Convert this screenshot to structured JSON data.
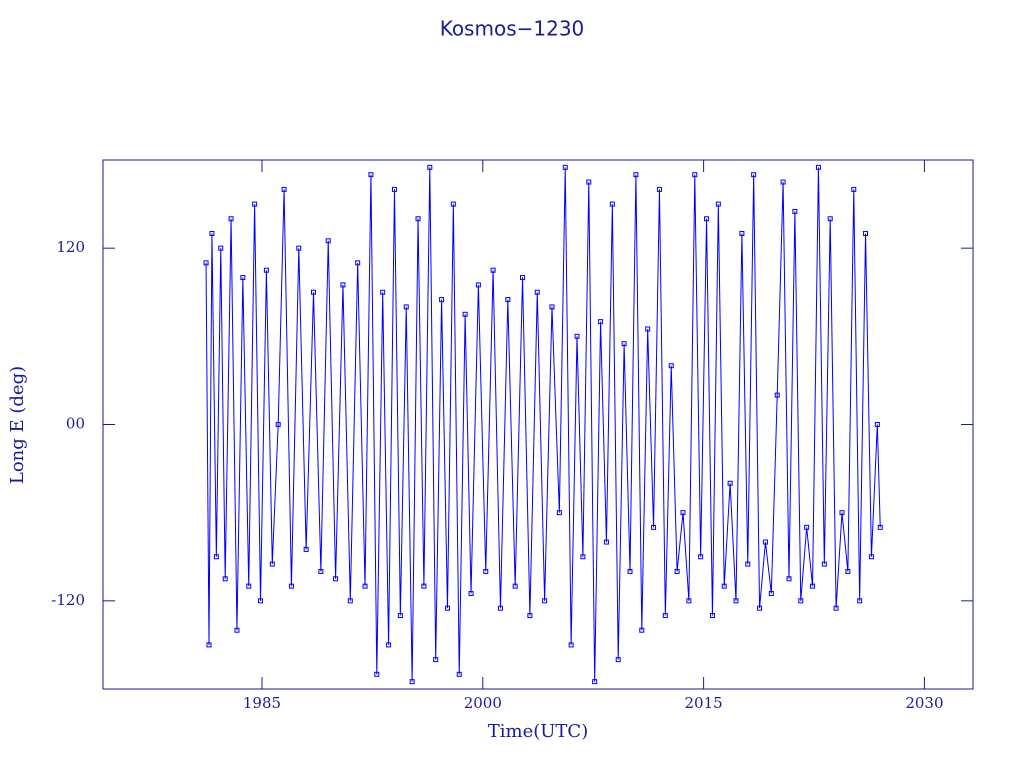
{
  "chart_data": {
    "type": "line",
    "title": "Kosmos−1230",
    "xlabel": "Time(UTC)",
    "ylabel": "Long E (deg)",
    "color": "#0000ff",
    "axis_color": "#1a1a9a",
    "xlim": [
      1974.2,
      2033.3
    ],
    "xticks": [
      1985,
      2000,
      2015,
      2030
    ],
    "ylim": [
      -180,
      180
    ],
    "yticks": [
      120,
      {
        "value": 0,
        "label": "00"
      },
      -120
    ],
    "x": [
      1981.2,
      1981.4,
      1981.6,
      1981.9,
      1982.2,
      1982.5,
      1982.9,
      1983.3,
      1983.7,
      1984.1,
      1984.5,
      1984.9,
      1985.3,
      1985.7,
      1986.1,
      1986.5,
      1987.0,
      1987.5,
      1988.0,
      1988.5,
      1989.0,
      1989.5,
      1990.0,
      1990.5,
      1991.0,
      1991.5,
      1992.0,
      1992.4,
      1992.8,
      1993.2,
      1993.6,
      1994.0,
      1994.4,
      1994.8,
      1995.2,
      1995.6,
      1996.0,
      1996.4,
      1996.8,
      1997.2,
      1997.6,
      1998.0,
      1998.4,
      1998.8,
      1999.2,
      1999.7,
      2000.2,
      2000.7,
      2001.2,
      2001.7,
      2002.2,
      2002.7,
      2003.2,
      2003.7,
      2004.2,
      2004.7,
      2005.2,
      2005.6,
      2006.0,
      2006.4,
      2006.8,
      2007.2,
      2007.6,
      2008.0,
      2008.4,
      2008.8,
      2009.2,
      2009.6,
      2010.0,
      2010.4,
      2010.8,
      2011.2,
      2011.6,
      2012.0,
      2012.4,
      2012.8,
      2013.2,
      2013.6,
      2014.0,
      2014.4,
      2014.8,
      2015.2,
      2015.6,
      2016.0,
      2016.4,
      2016.8,
      2017.2,
      2017.6,
      2018.0,
      2018.4,
      2018.8,
      2019.2,
      2019.6,
      2020.0,
      2020.4,
      2020.8,
      2021.2,
      2021.6,
      2022.0,
      2022.4,
      2022.8,
      2023.2,
      2023.6,
      2024.0,
      2024.4,
      2024.8,
      2025.2,
      2025.6,
      2026.0,
      2026.4,
      2026.8,
      2027.0
    ],
    "values": [
      110,
      -150,
      130,
      -90,
      120,
      -105,
      140,
      -140,
      100,
      -110,
      150,
      -120,
      105,
      -95,
      0,
      160,
      -110,
      120,
      -85,
      90,
      -100,
      125,
      -105,
      95,
      -120,
      110,
      -110,
      170,
      -170,
      90,
      -150,
      160,
      -130,
      80,
      -175,
      140,
      -110,
      175,
      -160,
      85,
      -125,
      150,
      -170,
      75,
      -115,
      95,
      -100,
      105,
      -125,
      85,
      -110,
      100,
      -130,
      90,
      -120,
      80,
      -60,
      175,
      -150,
      60,
      -90,
      165,
      -175,
      70,
      -80,
      150,
      -160,
      55,
      -100,
      170,
      -140,
      65,
      -70,
      160,
      -130,
      40,
      -100,
      -60,
      -120,
      170,
      -90,
      140,
      -130,
      150,
      -110,
      -40,
      -120,
      130,
      -95,
      170,
      -125,
      -80,
      -115,
      20,
      165,
      -105,
      145,
      -120,
      -70,
      -110,
      175,
      -95,
      140,
      -125,
      -60,
      -100,
      160,
      -120,
      130,
      -90,
      0,
      -70
    ]
  }
}
